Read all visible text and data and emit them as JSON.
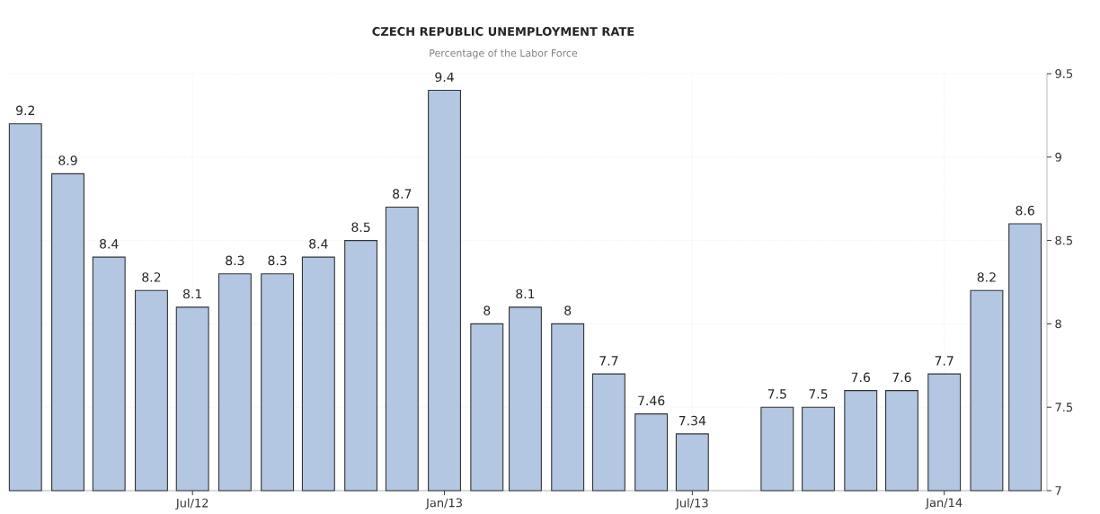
{
  "chart_data": {
    "type": "bar",
    "title": "CZECH REPUBLIC UNEMPLOYMENT RATE",
    "subtitle": "Percentage of the Labor Force",
    "x": [
      "2012-03",
      "2012-04",
      "2012-05",
      "2012-06",
      "2012-07",
      "2012-08",
      "2012-09",
      "2012-10",
      "2012-11",
      "2012-12",
      "2013-01",
      "2013-02",
      "2013-03",
      "2013-04",
      "2013-05",
      "2013-06",
      "2013-07",
      "2013-08",
      "2013-09",
      "2013-10",
      "2013-11",
      "2013-12",
      "2014-01",
      "2014-02",
      "2014-03"
    ],
    "values": [
      9.2,
      8.9,
      8.4,
      8.2,
      8.1,
      8.3,
      8.3,
      8.4,
      8.5,
      8.7,
      9.4,
      8,
      8.1,
      8,
      7.7,
      7.46,
      7.34,
      null,
      7.5,
      7.5,
      7.6,
      7.6,
      7.7,
      8.2,
      8.6
    ],
    "color": "#b3c6e2",
    "xlim": [
      "2012-02-18",
      "2014-03-17"
    ],
    "xticks": [
      {
        "value": "2012-07",
        "label": "Jul/12"
      },
      {
        "value": "2013-01",
        "label": "Jan/13"
      },
      {
        "value": "2013-07",
        "label": "Jul/13"
      },
      {
        "value": "2014-01",
        "label": "Jan/14"
      }
    ],
    "ylim": [
      7,
      9.5
    ],
    "yticks": [
      7,
      7.5,
      8,
      8.5,
      9,
      9.5
    ],
    "grid": true,
    "data_labels": true
  }
}
